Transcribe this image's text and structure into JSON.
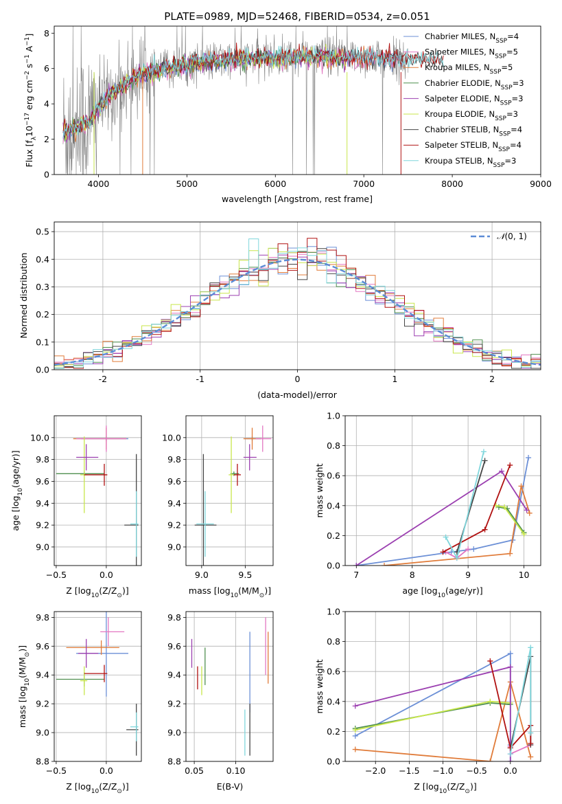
{
  "figure": {
    "title": "PLATE=0989, MJD=52468, FIBERID=0534, z=0.051"
  },
  "colors": {
    "Chabrier MILES": "#6b8fd6",
    "Salpeter MILES": "#e377c2",
    "Kroupa MILES": "#e07b39",
    "Chabrier ELODIE": "#4f8f4f",
    "Salpeter ELODIE": "#9b3fb0",
    "Kroupa ELODIE": "#c8e64a",
    "Chabrier STELIB": "#444444",
    "Salpeter STELIB": "#b01010",
    "Kroupa STELIB": "#7fd6dc",
    "gaussian": "#5b8bd6",
    "data": "#808080"
  },
  "chart_data": [
    {
      "type": "line",
      "id": "spectrum",
      "title": "PLATE=0989, MJD=52468, FIBERID=0534, z=0.051",
      "xlabel": "wavelength [Angstrom, rest frame]",
      "ylabel": "Flux [f",
      "ylabel_parts": [
        "Flux [f",
        "λ",
        "10",
        "−17",
        " erg cm",
        "−2",
        " s",
        "−1",
        " A",
        "−1",
        "]"
      ],
      "xlim": [
        3500,
        9000
      ],
      "ylim": [
        0,
        8.4
      ],
      "xticks": [
        4000,
        5000,
        6000,
        7000,
        8000,
        9000
      ],
      "yticks": [
        0,
        2,
        4,
        6,
        8
      ],
      "legend": "upper-right",
      "legend_entries": [
        {
          "name": "Chabrier MILES",
          "nssp": "4"
        },
        {
          "name": "Salpeter MILES",
          "nssp": "5"
        },
        {
          "name": "Kroupa MILES",
          "nssp": "5"
        },
        {
          "name": "Chabrier ELODIE",
          "nssp": "3"
        },
        {
          "name": "Salpeter ELODIE",
          "nssp": "3"
        },
        {
          "name": "Kroupa ELODIE",
          "nssp": "3"
        },
        {
          "name": "Chabrier STELIB",
          "nssp": "4"
        },
        {
          "name": "Salpeter STELIB",
          "nssp": "4"
        },
        {
          "name": "Kroupa STELIB",
          "nssp": "3"
        }
      ],
      "legend_prefix": "N",
      "legend_sub": "SSP",
      "continuum_x": [
        3600,
        3700,
        3800,
        3900,
        4000,
        4100,
        4200,
        4300,
        4400,
        4500,
        4700,
        4900,
        5100,
        5300,
        5500,
        5700,
        5900,
        6100,
        6300,
        6500,
        6700,
        6900,
        7100,
        7300,
        7500,
        7700,
        7900
      ],
      "continuum_y": [
        2.4,
        2.5,
        2.8,
        2.9,
        3.8,
        4.4,
        4.7,
        5.1,
        5.4,
        5.7,
        5.9,
        6.1,
        6.3,
        6.4,
        6.5,
        6.55,
        6.6,
        6.6,
        6.65,
        6.7,
        6.6,
        6.6,
        6.6,
        6.55,
        6.45,
        6.5,
        6.4
      ]
    },
    {
      "type": "histogram",
      "id": "residuals",
      "xlabel": "(data-model)/error",
      "ylabel": "Normed distribution",
      "xlim": [
        -2.5,
        2.5
      ],
      "ylim": [
        0,
        0.535
      ],
      "xticks": [
        -2,
        -1,
        0,
        1,
        2
      ],
      "yticks": [
        0.0,
        0.1,
        0.2,
        0.3,
        0.4,
        0.5
      ],
      "bin_width": 0.1,
      "legend": "upper-right",
      "legend_label": "N(0,1)",
      "legend_label_parts": [
        "𝒩",
        "(0, 1)"
      ]
    },
    {
      "type": "errorbar",
      "id": "age-vs-z",
      "xlabel_parts": [
        "Z [log",
        "10",
        "(Z/Z",
        "⊙",
        ")]"
      ],
      "ylabel_parts": [
        "age  [log",
        "10",
        "(age/yr)]"
      ],
      "xlim": [
        -0.52,
        0.35
      ],
      "ylim": [
        8.83,
        10.2
      ],
      "xticks": [
        -0.5,
        0.0
      ],
      "yticks": [
        9.0,
        9.2,
        9.4,
        9.6,
        9.8,
        10.0
      ],
      "points": [
        {
          "model": "Chabrier MILES",
          "x": 0.0,
          "y": 9.99,
          "xerr": [
            0.25,
            0.22
          ],
          "yerr": 0.02
        },
        {
          "model": "Kroupa MILES",
          "x": 0.0,
          "y": 9.99,
          "xerr": [
            0.33,
            0.2
          ],
          "yerr": 0.1
        },
        {
          "model": "Salpeter MILES",
          "x": 0.0,
          "y": 9.99,
          "xerr": [
            0.3,
            0.2
          ],
          "yerr": 0.12
        },
        {
          "model": "Chabrier ELODIE",
          "x": -0.22,
          "y": 9.67,
          "xerr": [
            0.28,
            0.2
          ],
          "yerr": 0.02
        },
        {
          "model": "Kroupa ELODIE",
          "x": -0.22,
          "y": 9.66,
          "xerr": [
            0.04,
            0.03
          ],
          "yerr": 0.35
        },
        {
          "model": "Salpeter ELODIE",
          "x": -0.2,
          "y": 9.82,
          "xerr": [
            0.1,
            0.12
          ],
          "yerr": 0.12
        },
        {
          "model": "Salpeter STELIB",
          "x": -0.02,
          "y": 9.66,
          "xerr": [
            0.2,
            0.03
          ],
          "yerr": 0.1
        },
        {
          "model": "Chabrier STELIB",
          "x": 0.3,
          "y": 9.2,
          "xerr": [
            0.12,
            0.02
          ],
          "yerr": 0.65
        },
        {
          "model": "Kroupa STELIB",
          "x": 0.3,
          "y": 9.21,
          "xerr": [
            0.06,
            0.02
          ],
          "yerr": 0.3
        }
      ]
    },
    {
      "type": "errorbar",
      "id": "age-vs-mass",
      "xlabel_parts": [
        "mass [log",
        "10",
        "(M/M",
        "⊙",
        ")]"
      ],
      "xlim": [
        8.82,
        9.82
      ],
      "ylim": [
        8.83,
        10.2
      ],
      "xticks": [
        9.0,
        9.5
      ],
      "yticks": [
        9.0,
        9.2,
        9.4,
        9.6,
        9.8,
        10.0
      ],
      "points": [
        {
          "model": "Chabrier MILES",
          "x": 9.58,
          "y": 9.99,
          "xerr": [
            0.08,
            0.1
          ],
          "yerr": 0.02
        },
        {
          "model": "Kroupa MILES",
          "x": 9.58,
          "y": 9.99,
          "xerr": [
            0.1,
            0.1
          ],
          "yerr": 0.1
        },
        {
          "model": "Salpeter MILES",
          "x": 9.7,
          "y": 9.99,
          "xerr": [
            0.08,
            0.1
          ],
          "yerr": 0.12
        },
        {
          "model": "Chabrier ELODIE",
          "x": 9.37,
          "y": 9.67,
          "xerr": [
            0.04,
            0.06
          ],
          "yerr": 0.02
        },
        {
          "model": "Kroupa ELODIE",
          "x": 9.34,
          "y": 9.66,
          "xerr": [
            0.03,
            0.05
          ],
          "yerr": 0.35
        },
        {
          "model": "Salpeter ELODIE",
          "x": 9.55,
          "y": 9.82,
          "xerr": [
            0.07,
            0.08
          ],
          "yerr": 0.12
        },
        {
          "model": "Salpeter STELIB",
          "x": 9.41,
          "y": 9.66,
          "xerr": [
            0.04,
            0.04
          ],
          "yerr": 0.1
        },
        {
          "model": "Chabrier STELIB",
          "x": 9.02,
          "y": 9.2,
          "xerr": [
            0.1,
            0.15
          ],
          "yerr": 0.65
        },
        {
          "model": "Kroupa STELIB",
          "x": 9.04,
          "y": 9.21,
          "xerr": [
            0.1,
            0.1
          ],
          "yerr": 0.3
        }
      ]
    },
    {
      "type": "line",
      "id": "massweight-vs-age",
      "xlabel_parts": [
        "age  [log",
        "10",
        "(age/yr)]"
      ],
      "ylabel": "mass weight",
      "xlim": [
        6.8,
        10.3
      ],
      "ylim": [
        0,
        1.0
      ],
      "xticks": [
        7,
        8,
        9,
        10
      ],
      "yticks": [
        0.0,
        0.2,
        0.4,
        0.6,
        0.8,
        1.0
      ],
      "series": [
        {
          "model": "Chabrier MILES",
          "x": [
            7.0,
            8.7,
            9.1,
            9.8,
            10.08
          ],
          "y": [
            0.0,
            0.09,
            0.11,
            0.17,
            0.72
          ]
        },
        {
          "model": "Kroupa MILES",
          "x": [
            7.5,
            9.75,
            9.95,
            10.1
          ],
          "y": [
            0.0,
            0.08,
            0.53,
            0.35
          ]
        },
        {
          "model": "Salpeter MILES",
          "x": [
            8.6,
            8.8,
            9.0
          ],
          "y": [
            0.09,
            0.05,
            0.11
          ]
        },
        {
          "model": "Chabrier ELODIE",
          "x": [
            9.55,
            9.7,
            10.0
          ],
          "y": [
            0.39,
            0.38,
            0.22
          ]
        },
        {
          "model": "Kroupa ELODIE",
          "x": [
            9.5,
            9.65,
            10.0
          ],
          "y": [
            0.4,
            0.39,
            0.21
          ]
        },
        {
          "model": "Salpeter ELODIE",
          "x": [
            7.0,
            9.6,
            10.05
          ],
          "y": [
            0.0,
            0.63,
            0.37
          ]
        },
        {
          "model": "Chabrier STELIB",
          "x": [
            8.8,
            9.3
          ],
          "y": [
            0.09,
            0.7
          ]
        },
        {
          "model": "Salpeter STELIB",
          "x": [
            8.55,
            9.3,
            9.75
          ],
          "y": [
            0.09,
            0.24,
            0.67
          ]
        },
        {
          "model": "Kroupa STELIB",
          "x": [
            8.6,
            8.8,
            9.28
          ],
          "y": [
            0.19,
            0.05,
            0.76
          ]
        }
      ]
    },
    {
      "type": "errorbar",
      "id": "mass-vs-z",
      "xlabel_parts": [
        "Z [log",
        "10",
        "(Z/Z",
        "⊙",
        ")]"
      ],
      "ylabel_parts": [
        "mass [log",
        "10",
        "(M/M",
        "⊙",
        ")]"
      ],
      "xlim": [
        -0.52,
        0.35
      ],
      "ylim": [
        8.8,
        9.84
      ],
      "xticks": [
        -0.5,
        0.0
      ],
      "yticks": [
        8.8,
        9.0,
        9.2,
        9.4,
        9.6,
        9.8
      ],
      "points": [
        {
          "model": "Chabrier MILES",
          "x": 0.0,
          "y": 9.55,
          "xerr": [
            0.3,
            0.22
          ],
          "yerr": 0.3
        },
        {
          "model": "Kroupa MILES",
          "x": -0.05,
          "y": 9.59,
          "xerr": [
            0.35,
            0.18
          ],
          "yerr": 0.05
        },
        {
          "model": "Salpeter MILES",
          "x": 0.02,
          "y": 9.7,
          "xerr": [
            0.08,
            0.16
          ],
          "yerr": 0.1
        },
        {
          "model": "Chabrier ELODIE",
          "x": -0.22,
          "y": 9.37,
          "xerr": [
            0.28,
            0.2
          ],
          "yerr": 0.05
        },
        {
          "model": "Kroupa ELODIE",
          "x": -0.22,
          "y": 9.36,
          "xerr": [
            0.04,
            0.03
          ],
          "yerr": 0.1
        },
        {
          "model": "Salpeter ELODIE",
          "x": -0.2,
          "y": 9.55,
          "xerr": [
            0.08,
            0.12
          ],
          "yerr": 0.1
        },
        {
          "model": "Salpeter STELIB",
          "x": -0.02,
          "y": 9.41,
          "xerr": [
            0.2,
            0.03
          ],
          "yerr": 0.06
        },
        {
          "model": "Chabrier STELIB",
          "x": 0.3,
          "y": 9.02,
          "xerr": [
            0.1,
            0.02
          ],
          "yerr": 0.18
        },
        {
          "model": "Kroupa STELIB",
          "x": 0.3,
          "y": 9.04,
          "xerr": [
            0.06,
            0.02
          ],
          "yerr": 0.1
        }
      ]
    },
    {
      "type": "errorbar",
      "id": "mass-vs-ebv",
      "xlabel": "E(B-V)",
      "xlim": [
        0.04,
        0.145
      ],
      "ylim": [
        8.8,
        9.84
      ],
      "xticks": [
        0.05,
        0.1
      ],
      "xtick_labels": [
        "0.05",
        "0.10"
      ],
      "yticks": [
        8.8,
        9.0,
        9.2,
        9.4,
        9.6,
        9.8
      ],
      "points": [
        {
          "model": "Salpeter ELODIE",
          "x": 0.047,
          "y": 9.55,
          "yerr": 0.1
        },
        {
          "model": "Salpeter STELIB",
          "x": 0.054,
          "y": 9.38,
          "yerr": 0.08
        },
        {
          "model": "Kroupa ELODIE",
          "x": 0.059,
          "y": 9.36,
          "yerr": 0.1
        },
        {
          "model": "Chabrier ELODIE",
          "x": 0.063,
          "y": 9.46,
          "yerr": 0.13
        },
        {
          "model": "Kroupa STELIB",
          "x": 0.111,
          "y": 9.0,
          "yerr": 0.16
        },
        {
          "model": "Chabrier MILES",
          "x": 0.117,
          "y": 9.42,
          "yerr": 0.28
        },
        {
          "model": "Chabrier STELIB",
          "x": 0.117,
          "y": 9.02,
          "yerr": 0.18
        },
        {
          "model": "Salpeter MILES",
          "x": 0.136,
          "y": 9.6,
          "yerr": 0.2
        },
        {
          "model": "Kroupa MILES",
          "x": 0.139,
          "y": 9.52,
          "yerr": 0.18
        }
      ]
    },
    {
      "type": "line",
      "id": "massweight-vs-z",
      "xlabel_parts": [
        "Z [log",
        "10",
        "(Z/Z",
        "⊙",
        ")]"
      ],
      "ylabel": "mass weight",
      "xlim": [
        -2.45,
        0.45
      ],
      "ylim": [
        0,
        1.0
      ],
      "xticks": [
        -2.0,
        -1.5,
        -1.0,
        -0.5,
        0.0
      ],
      "xtick_labels": [
        "−2.0",
        "−1.5",
        "−1.0",
        "−0.5",
        "0.0"
      ],
      "yticks": [
        0.0,
        0.2,
        0.4,
        0.6,
        0.8,
        1.0
      ],
      "series": [
        {
          "model": "Chabrier MILES",
          "x": [
            -2.3,
            0.0,
            0.0,
            0.0
          ],
          "y": [
            0.17,
            0.72,
            0.0,
            0.11
          ]
        },
        {
          "model": "Kroupa MILES",
          "x": [
            -2.3,
            -0.3,
            0.0,
            0.3
          ],
          "y": [
            0.08,
            0.0,
            0.53,
            0.03
          ]
        },
        {
          "model": "Salpeter MILES",
          "x": [
            0.0,
            0.0,
            0.3
          ],
          "y": [
            0.1,
            0.05,
            0.11
          ]
        },
        {
          "model": "Chabrier ELODIE",
          "x": [
            -2.3,
            -0.3,
            0.0
          ],
          "y": [
            0.22,
            0.39,
            0.38
          ]
        },
        {
          "model": "Kroupa ELODIE",
          "x": [
            -2.3,
            -0.3,
            0.0
          ],
          "y": [
            0.21,
            0.4,
            0.39
          ]
        },
        {
          "model": "Salpeter ELODIE",
          "x": [
            -2.3,
            0.0,
            0.0
          ],
          "y": [
            0.37,
            0.63,
            0.0
          ]
        },
        {
          "model": "Chabrier STELIB",
          "x": [
            0.0,
            0.3,
            0.3
          ],
          "y": [
            0.09,
            0.7,
            0.11
          ]
        },
        {
          "model": "Salpeter STELIB",
          "x": [
            -0.3,
            0.0,
            0.3,
            0.3
          ],
          "y": [
            0.67,
            0.09,
            0.24,
            0.12
          ]
        },
        {
          "model": "Kroupa STELIB",
          "x": [
            0.0,
            0.3,
            0.3
          ],
          "y": [
            0.05,
            0.76,
            0.19
          ]
        }
      ]
    }
  ]
}
